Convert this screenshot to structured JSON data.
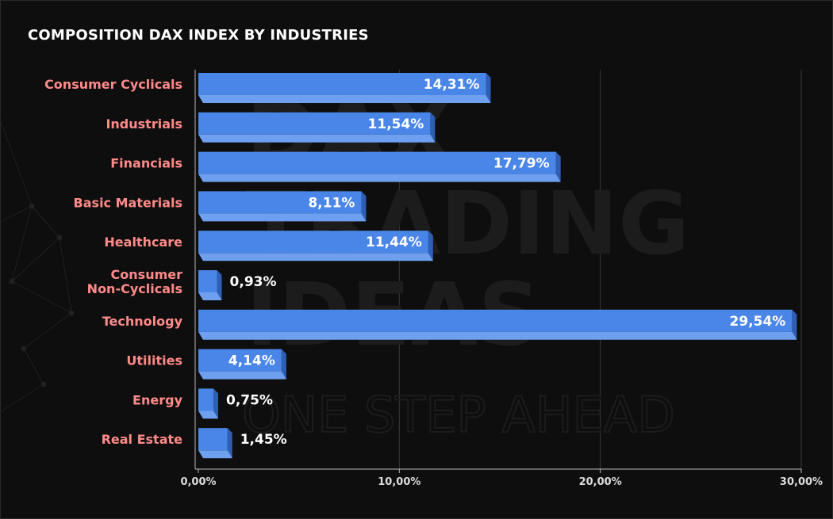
{
  "chart_data": {
    "type": "bar",
    "orientation": "horizontal",
    "title": "COMPOSITION DAX INDEX BY INDUSTRIES",
    "categories": [
      "Consumer Cyclicals",
      "Industrials",
      "Financials",
      "Basic Materials",
      "Healthcare",
      "Consumer Non-Cyclicals",
      "Technology",
      "Utilities",
      "Energy",
      "Real Estate"
    ],
    "category_lines": [
      [
        "Consumer Cyclicals"
      ],
      [
        "Industrials"
      ],
      [
        "Financials"
      ],
      [
        "Basic Materials"
      ],
      [
        "Healthcare"
      ],
      [
        "Consumer",
        "Non-Cyclicals"
      ],
      [
        "Technology"
      ],
      [
        "Utilities"
      ],
      [
        "Energy"
      ],
      [
        "Real Estate"
      ]
    ],
    "values": [
      14.31,
      11.54,
      17.79,
      8.11,
      11.44,
      0.93,
      29.54,
      4.14,
      0.75,
      1.45
    ],
    "value_labels": [
      "14,31%",
      "11,54%",
      "17,79%",
      "8,11%",
      "11,44%",
      "0,93%",
      "29,54%",
      "4,14%",
      "0,75%",
      "1,45%"
    ],
    "xlim": [
      0,
      30
    ],
    "x_ticks": [
      0,
      10,
      20,
      30
    ],
    "x_tick_labels": [
      "0,00%",
      "10,00%",
      "20,00%",
      "30,00%"
    ],
    "grid": "vertical",
    "colors": {
      "bar_front": "#4a86e8",
      "bar_side": "#2f5fb4",
      "bar_bottom": "#6fa0f0",
      "category_label": "#ff8a8a",
      "value_label": "#ffffff",
      "tick_label": "#dddddd",
      "grid": "#3a3a3a",
      "axis": "#bbbbbb"
    }
  },
  "watermark": {
    "lines": [
      "DAX",
      "TRADING",
      "IDEAS"
    ],
    "tagline": "ONE STEP AHEAD"
  }
}
